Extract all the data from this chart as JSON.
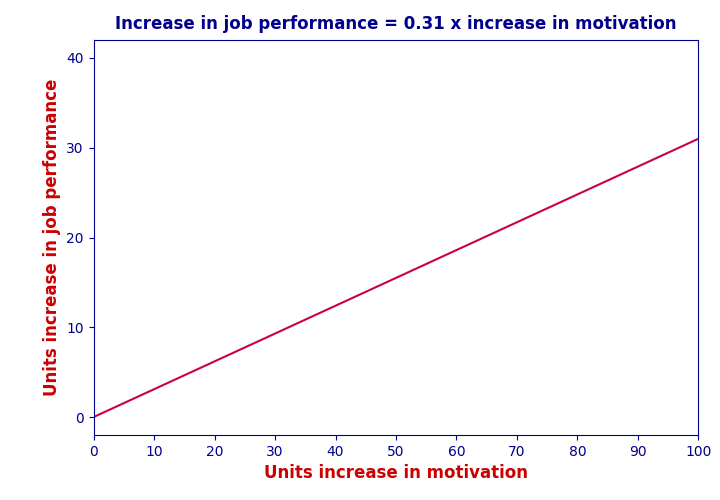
{
  "title": "Increase in job performance = 0.31 x increase in motivation",
  "xlabel": "Units increase in motivation",
  "ylabel": "Units increase in job performance",
  "title_color": "#00008B",
  "xlabel_color": "#CC0000",
  "ylabel_color": "#CC0000",
  "line_color": "#CC0044",
  "spine_color": "#00008B",
  "tick_label_color": "#00008B",
  "background_color": "#FFFFFF",
  "xlim": [
    0,
    100
  ],
  "ylim": [
    -2,
    42
  ],
  "xticks": [
    0,
    10,
    20,
    30,
    40,
    50,
    60,
    70,
    80,
    90,
    100
  ],
  "yticks": [
    0,
    10,
    20,
    30,
    40
  ],
  "slope": 0.31,
  "intercept": 0,
  "x_start": 0,
  "x_end": 100,
  "title_fontsize": 12,
  "label_fontsize": 12,
  "tick_fontsize": 10,
  "line_width": 1.5
}
